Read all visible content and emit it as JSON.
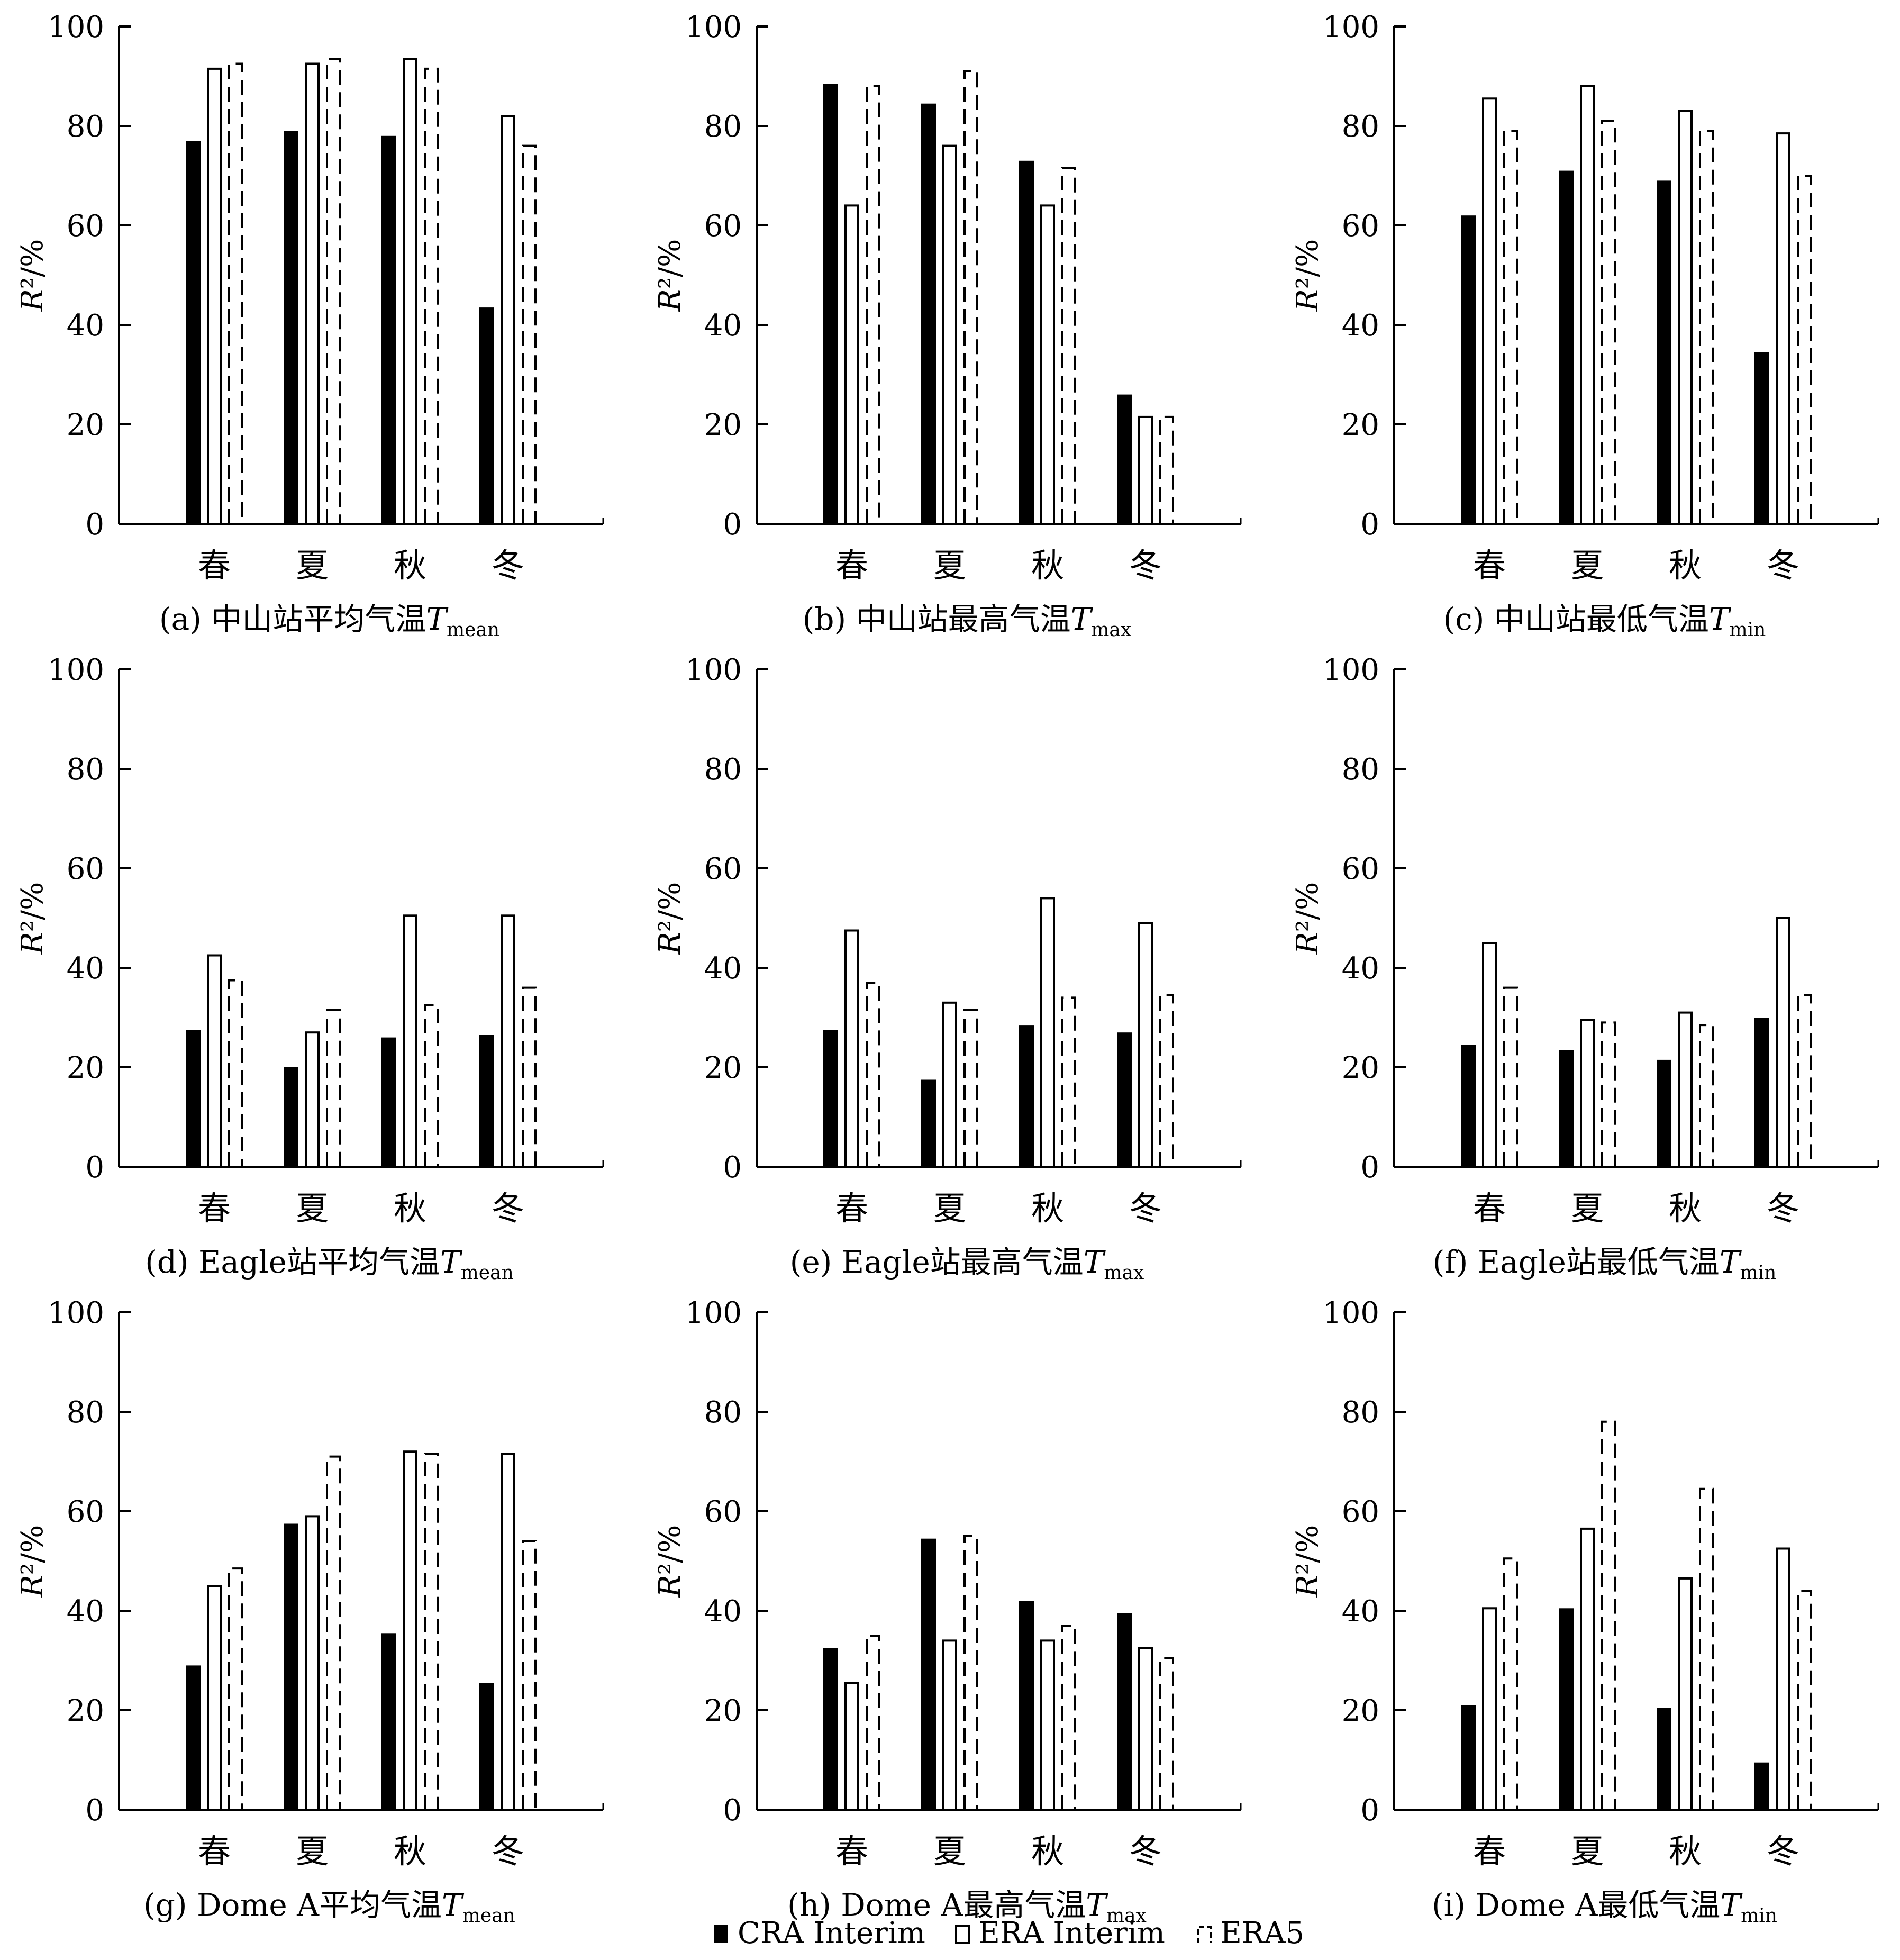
{
  "chart_data": [
    {
      "type": "bar",
      "panel_label": "(a) 中山站平均气温",
      "subscript": "mean",
      "categories": [
        "春",
        "夏",
        "秋",
        "冬"
      ],
      "ylabel": "R²/%",
      "ylim": [
        0,
        100
      ],
      "yticks": [
        0,
        20,
        40,
        60,
        80,
        100
      ],
      "series": [
        {
          "name": "CRA Interim",
          "values": [
            77,
            79,
            78,
            43.5
          ]
        },
        {
          "name": "ERA Interim",
          "values": [
            91.5,
            92.5,
            93.5,
            82
          ]
        },
        {
          "name": "ERA5",
          "values": [
            92.5,
            93.5,
            91.5,
            76
          ]
        }
      ]
    },
    {
      "type": "bar",
      "panel_label": "(b) 中山站最高气温",
      "subscript": "max",
      "categories": [
        "春",
        "夏",
        "秋",
        "冬"
      ],
      "ylabel": "R²/%",
      "ylim": [
        0,
        100
      ],
      "yticks": [
        0,
        20,
        40,
        60,
        80,
        100
      ],
      "series": [
        {
          "name": "CRA Interim",
          "values": [
            88.5,
            84.5,
            73,
            26
          ]
        },
        {
          "name": "ERA Interim",
          "values": [
            64,
            76,
            64,
            21.5
          ]
        },
        {
          "name": "ERA5",
          "values": [
            88,
            91,
            71.5,
            21.5
          ]
        }
      ]
    },
    {
      "type": "bar",
      "panel_label": "(c) 中山站最低气温",
      "subscript": "min",
      "categories": [
        "春",
        "夏",
        "秋",
        "冬"
      ],
      "ylabel": "R²/%",
      "ylim": [
        0,
        100
      ],
      "yticks": [
        0,
        20,
        40,
        60,
        80,
        100
      ],
      "series": [
        {
          "name": "CRA Interim",
          "values": [
            62,
            71,
            69,
            34.5
          ]
        },
        {
          "name": "ERA Interim",
          "values": [
            85.5,
            88,
            83,
            78.5
          ]
        },
        {
          "name": "ERA5",
          "values": [
            79,
            81,
            79,
            70
          ]
        }
      ]
    },
    {
      "type": "bar",
      "panel_label": "(d) Eagle站平均气温",
      "subscript": "mean",
      "categories": [
        "春",
        "夏",
        "秋",
        "冬"
      ],
      "ylabel": "R²/%",
      "ylim": [
        0,
        100
      ],
      "yticks": [
        0,
        20,
        40,
        60,
        80,
        100
      ],
      "series": [
        {
          "name": "CRA Interim",
          "values": [
            27.5,
            20,
            26,
            26.5
          ]
        },
        {
          "name": "ERA Interim",
          "values": [
            42.5,
            27,
            50.5,
            50.5
          ]
        },
        {
          "name": "ERA5",
          "values": [
            37.5,
            31.5,
            32.5,
            36
          ]
        }
      ]
    },
    {
      "type": "bar",
      "panel_label": "(e) Eagle站最高气温",
      "subscript": "max",
      "categories": [
        "春",
        "夏",
        "秋",
        "冬"
      ],
      "ylabel": "R²/%",
      "ylim": [
        0,
        100
      ],
      "yticks": [
        0,
        20,
        40,
        60,
        80,
        100
      ],
      "series": [
        {
          "name": "CRA Interim",
          "values": [
            27.5,
            17.5,
            28.5,
            27
          ]
        },
        {
          "name": "ERA Interim",
          "values": [
            47.5,
            33,
            54,
            49
          ]
        },
        {
          "name": "ERA5",
          "values": [
            37,
            31.5,
            34,
            34.5
          ]
        }
      ]
    },
    {
      "type": "bar",
      "panel_label": "(f) Eagle站最低气温",
      "subscript": "min",
      "categories": [
        "春",
        "夏",
        "秋",
        "冬"
      ],
      "ylabel": "R²/%",
      "ylim": [
        0,
        100
      ],
      "yticks": [
        0,
        20,
        40,
        60,
        80,
        100
      ],
      "series": [
        {
          "name": "CRA Interim",
          "values": [
            24.5,
            23.5,
            21.5,
            30
          ]
        },
        {
          "name": "ERA Interim",
          "values": [
            45,
            29.5,
            31,
            50
          ]
        },
        {
          "name": "ERA5",
          "values": [
            36,
            29,
            28.5,
            34.5
          ]
        }
      ]
    },
    {
      "type": "bar",
      "panel_label": "(g) Dome A平均气温",
      "subscript": "mean",
      "categories": [
        "春",
        "夏",
        "秋",
        "冬"
      ],
      "ylabel": "R²/%",
      "ylim": [
        0,
        100
      ],
      "yticks": [
        0,
        20,
        40,
        60,
        80,
        100
      ],
      "series": [
        {
          "name": "CRA Interim",
          "values": [
            29,
            57.5,
            35.5,
            25.5
          ]
        },
        {
          "name": "ERA Interim",
          "values": [
            45,
            59,
            72,
            71.5
          ]
        },
        {
          "name": "ERA5",
          "values": [
            48.5,
            71,
            71.5,
            54
          ]
        }
      ]
    },
    {
      "type": "bar",
      "panel_label": "(h) Dome A最高气温",
      "subscript": "max",
      "categories": [
        "春",
        "夏",
        "秋",
        "冬"
      ],
      "ylabel": "R²/%",
      "ylim": [
        0,
        100
      ],
      "yticks": [
        0,
        20,
        40,
        60,
        80,
        100
      ],
      "series": [
        {
          "name": "CRA Interim",
          "values": [
            32.5,
            54.5,
            42,
            39.5
          ]
        },
        {
          "name": "ERA Interim",
          "values": [
            25.5,
            34,
            34,
            32.5
          ]
        },
        {
          "name": "ERA5",
          "values": [
            35,
            55,
            37,
            30.5
          ]
        }
      ]
    },
    {
      "type": "bar",
      "panel_label": "(i) Dome A最低气温",
      "subscript": "min",
      "categories": [
        "春",
        "夏",
        "秋",
        "冬"
      ],
      "ylabel": "R²/%",
      "ylim": [
        0,
        100
      ],
      "yticks": [
        0,
        20,
        40,
        60,
        80,
        100
      ],
      "series": [
        {
          "name": "CRA Interim",
          "values": [
            21,
            40.5,
            20.5,
            9.5
          ]
        },
        {
          "name": "ERA Interim",
          "values": [
            40.5,
            56.5,
            46.5,
            52.5
          ]
        },
        {
          "name": "ERA5",
          "values": [
            50.5,
            78,
            64.5,
            44
          ]
        }
      ]
    }
  ],
  "legend": {
    "items": [
      {
        "label": "CRA Interim",
        "style": "filled"
      },
      {
        "label": "ERA Interim",
        "style": "open"
      },
      {
        "label": "ERA5",
        "style": "dashed"
      }
    ]
  },
  "axis_title": "T",
  "colors": {
    "ink": "#000000",
    "paper": "#ffffff"
  }
}
